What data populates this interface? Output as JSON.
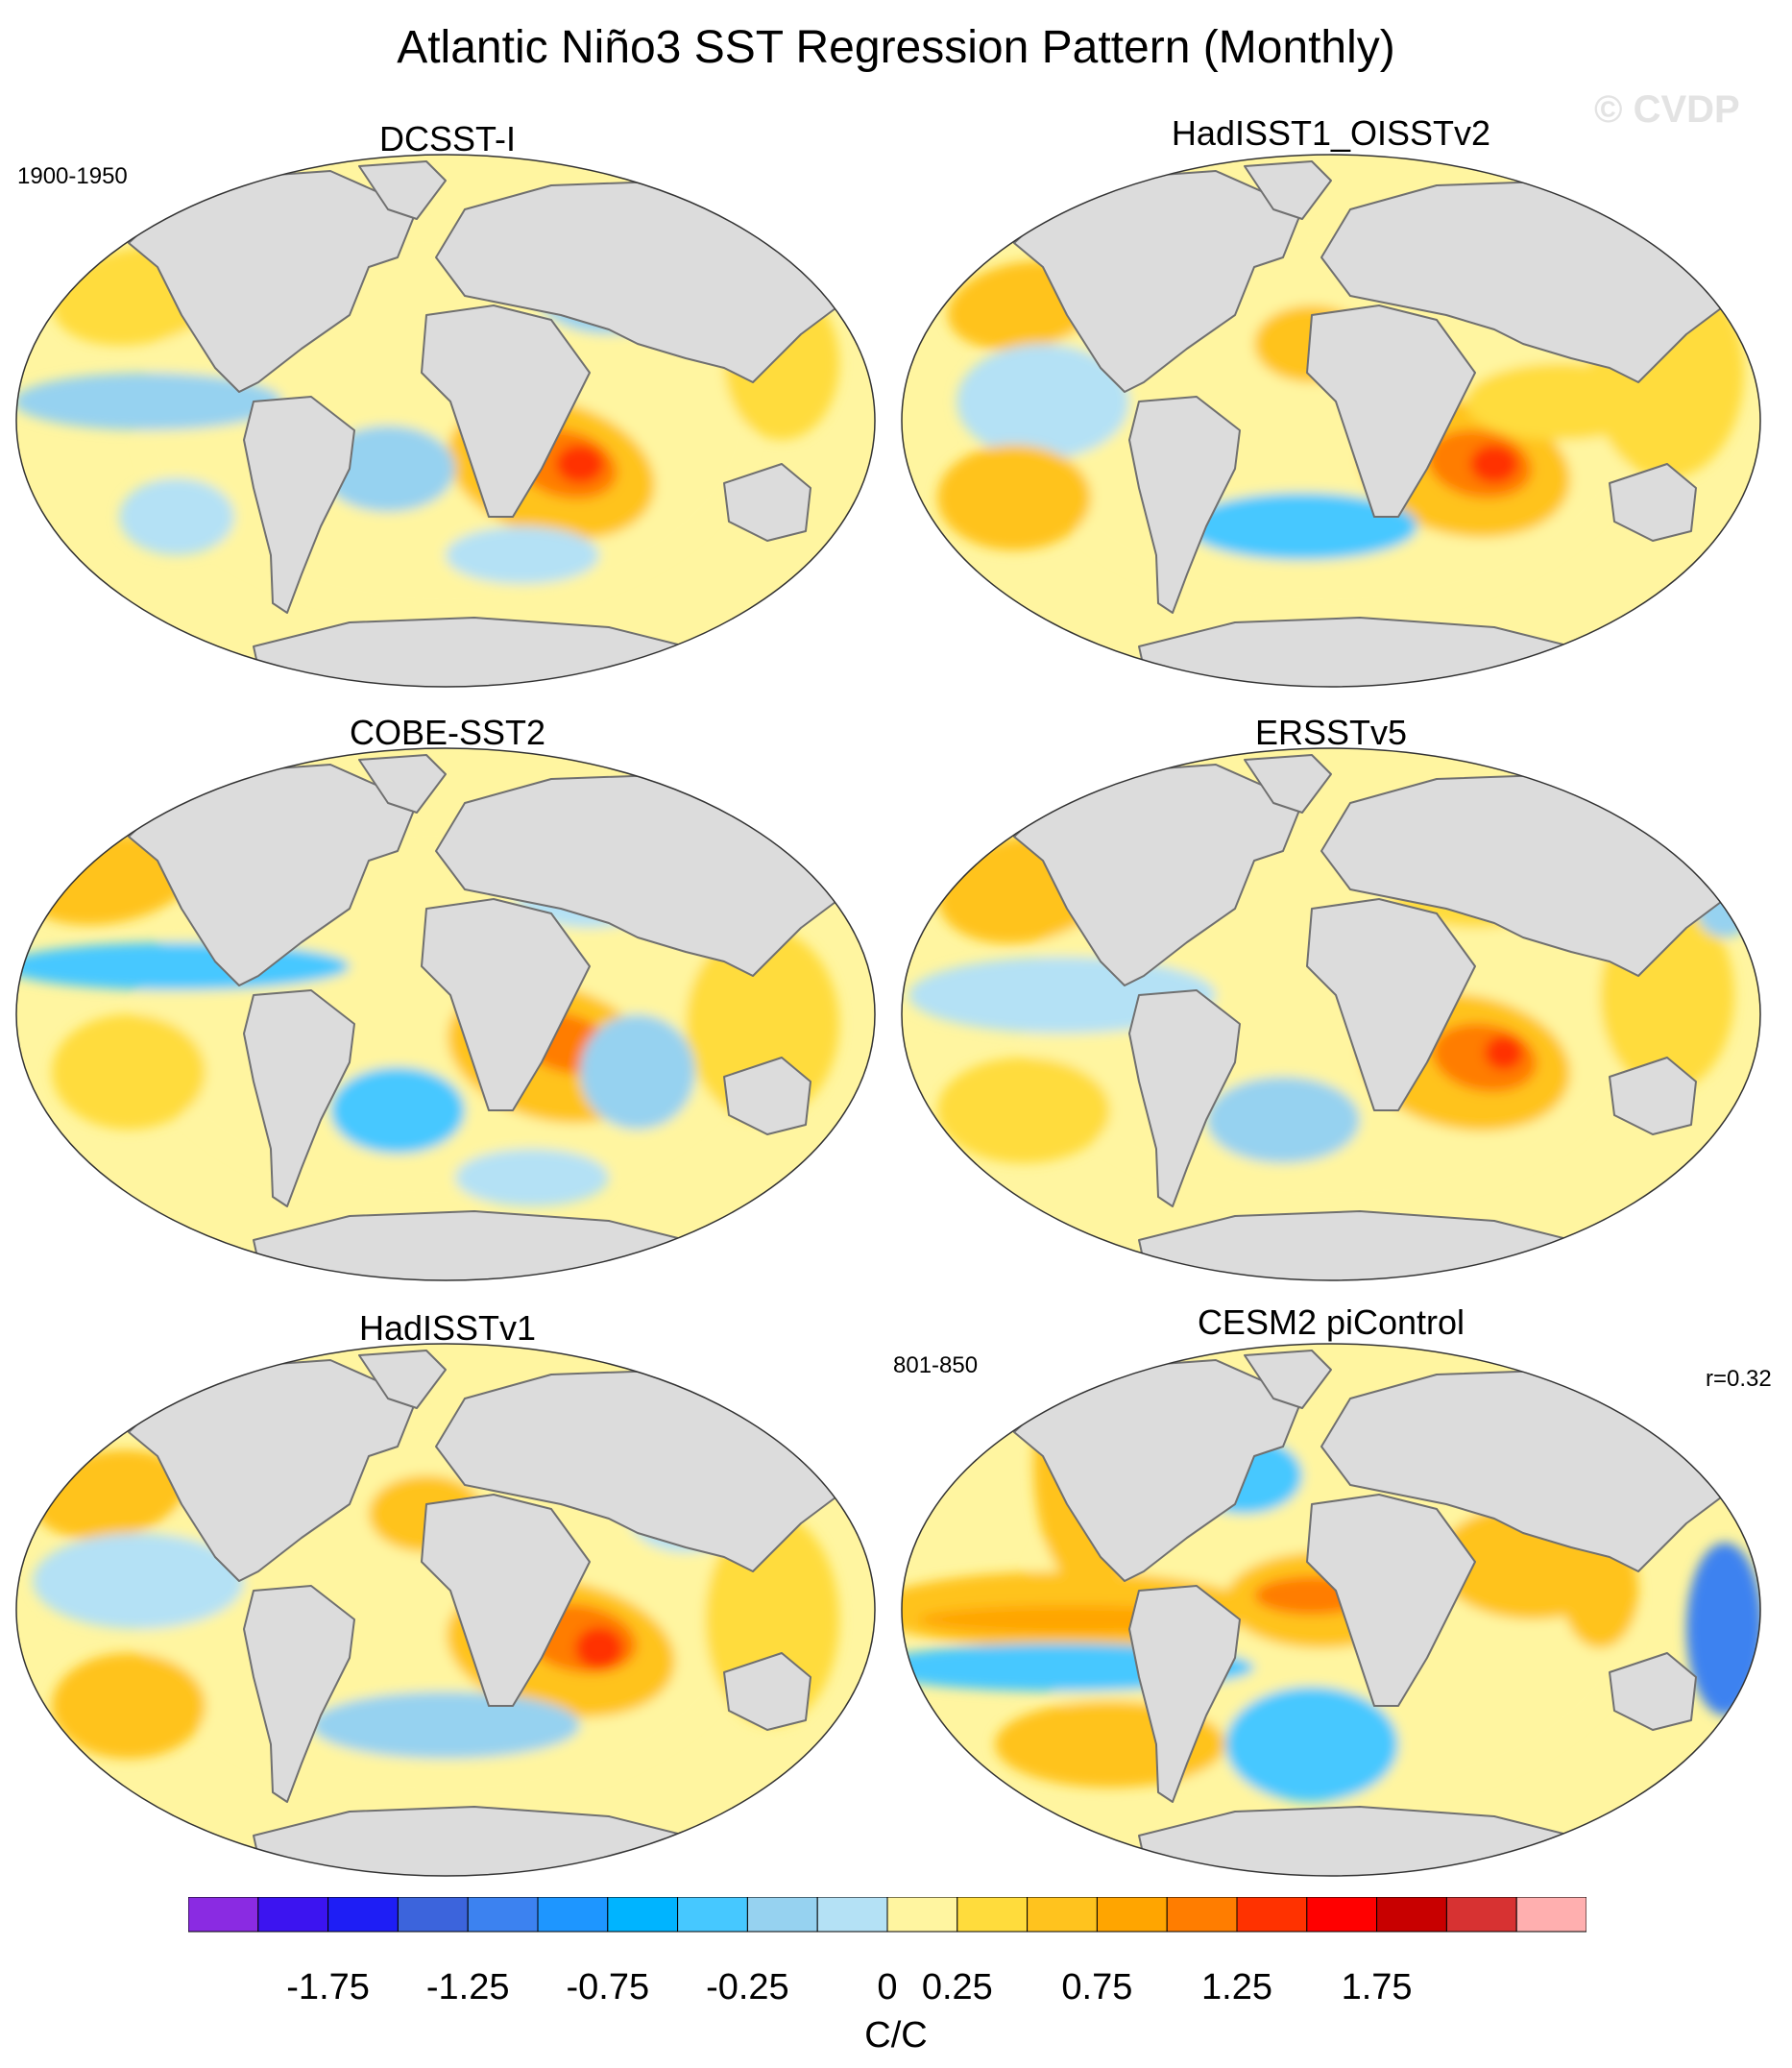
{
  "title": "Atlantic Niño3 SST Regression Pattern (Monthly)",
  "watermark": "© CVDP",
  "panels": [
    {
      "name": "DCSST-I",
      "period": "1900-1950",
      "corr": ""
    },
    {
      "name": "HadISST1_OISSTv2",
      "period": "",
      "corr": ""
    },
    {
      "name": "COBE-SST2",
      "period": "",
      "corr": ""
    },
    {
      "name": "ERSSTv5",
      "period": "",
      "corr": ""
    },
    {
      "name": "HadISSTv1",
      "period": "",
      "corr": ""
    },
    {
      "name": "CESM2 piControl",
      "period": "801-850",
      "corr": "r=0.32"
    }
  ],
  "colorbar": {
    "units": "C/C",
    "tick_labels": [
      "-1.75",
      "-1.25",
      "-0.75",
      "-0.25",
      "0",
      "0.25",
      "0.75",
      "1.25",
      "1.75"
    ],
    "colors": [
      "#8a2be2",
      "#3c14f0",
      "#1e1ef5",
      "#3c64dc",
      "#3c82f0",
      "#1e96ff",
      "#00b4ff",
      "#46c8ff",
      "#96d2f0",
      "#b4e1f5",
      "#fff5a0",
      "#ffdc3c",
      "#ffc31e",
      "#ffa500",
      "#ff7d00",
      "#ff3200",
      "#ff0000",
      "#c80000",
      "#d73232",
      "#ffafaf"
    ]
  },
  "land_color": "#dcdcdc",
  "coast_color": "#707070"
}
